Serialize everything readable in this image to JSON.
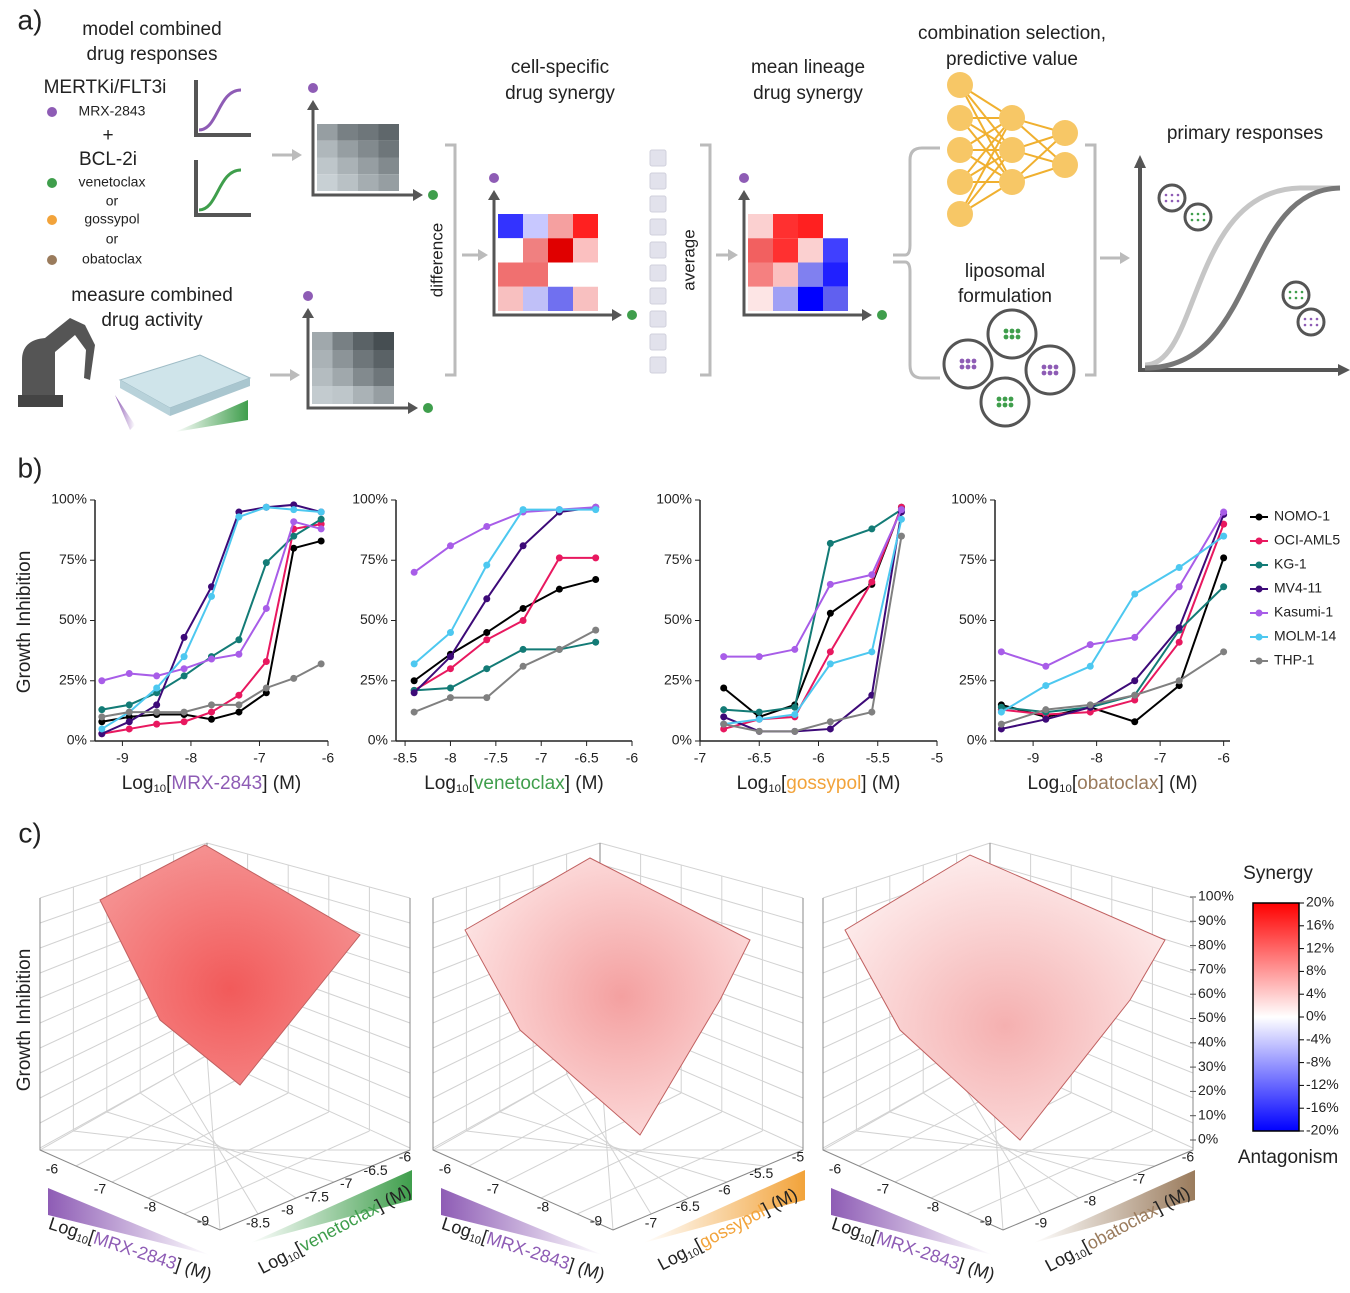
{
  "panel_a": {
    "label": "a)",
    "model": [
      "model combined",
      "drug responses"
    ],
    "mertk": "MERTKi/FLT3i",
    "mrx": "MRX-2843",
    "plus": "+",
    "bcl": "BCL-2i",
    "ven": "venetoclax",
    "or1": "or",
    "gos": "gossypol",
    "or2": "or",
    "oba": "obatoclax",
    "measure": [
      "measure combined",
      "drug activity"
    ],
    "difference": "difference",
    "cell": [
      "cell-specific",
      "drug synergy"
    ],
    "average": "average",
    "mean": [
      "mean lineage",
      "drug synergy"
    ],
    "combo": [
      "combination selection,",
      "predictive value"
    ],
    "lipo": [
      "liposomal",
      "formulation"
    ],
    "primary": "primary responses"
  },
  "panel_b": {
    "label": "b)",
    "ylabel": "Growth Inhibition",
    "log": "Log",
    "sub": "10",
    "open": "[",
    "close": "] (M)",
    "legend": [
      {
        "name": "NOMO-1",
        "color": "#000000"
      },
      {
        "name": "OCI-AML5",
        "color": "#e8185f"
      },
      {
        "name": "KG-1",
        "color": "#137b76"
      },
      {
        "name": "MV4-11",
        "color": "#3d0a78"
      },
      {
        "name": "Kasumi-1",
        "color": "#a85de8"
      },
      {
        "name": "MOLM-14",
        "color": "#4dc8f0"
      },
      {
        "name": "THP-1",
        "color": "#808080"
      }
    ]
  },
  "chart_data": [
    {
      "type": "line",
      "xlabel_drug": "MRX-2843",
      "xlabel_color": "#8e5cb5",
      "x": [
        -9.3,
        -8.9,
        -8.5,
        -8.1,
        -7.7,
        -7.3,
        -6.9,
        -6.5,
        -6.1
      ],
      "xlim": [
        -9.4,
        -6
      ],
      "xticks": [
        -9,
        -8,
        -7,
        -6
      ],
      "ylim": [
        0,
        100
      ],
      "yticks": [
        {
          "value": 0,
          "label": "0%"
        },
        {
          "value": 25,
          "label": "25%"
        },
        {
          "value": 50,
          "label": "50%"
        },
        {
          "value": 75,
          "label": "75%"
        },
        {
          "value": 100,
          "label": "100%"
        }
      ],
      "series": [
        {
          "values": [
            8,
            10,
            11,
            11,
            9,
            12,
            20,
            80,
            83
          ]
        },
        {
          "values": [
            3,
            5,
            7,
            8,
            12,
            19,
            33,
            88,
            90
          ]
        },
        {
          "values": [
            13,
            15,
            20,
            27,
            35,
            42,
            74,
            85,
            92
          ]
        },
        {
          "values": [
            3,
            8,
            15,
            43,
            64,
            95,
            97,
            98,
            95
          ]
        },
        {
          "values": [
            25,
            28,
            27,
            30,
            34,
            36,
            55,
            91,
            88
          ]
        },
        {
          "values": [
            5,
            12,
            22,
            35,
            60,
            93,
            97,
            96,
            95
          ]
        },
        {
          "values": [
            10,
            12,
            12,
            12,
            15,
            15,
            22,
            26,
            32
          ]
        }
      ]
    },
    {
      "type": "line",
      "xlabel_drug": "venetoclax",
      "xlabel_color": "#3f9e4c",
      "x": [
        -8.4,
        -8,
        -7.6,
        -7.2,
        -6.8,
        -6.4
      ],
      "xlim": [
        -8.6,
        -6
      ],
      "xticks": [
        -8.5,
        -8,
        -7.5,
        -7,
        -6.5,
        -6
      ],
      "ylim": [
        0,
        100
      ],
      "yticks": [
        {
          "value": 0,
          "label": "0%"
        },
        {
          "value": 25,
          "label": "25%"
        },
        {
          "value": 50,
          "label": "50%"
        },
        {
          "value": 75,
          "label": "75%"
        },
        {
          "value": 100,
          "label": "100%"
        }
      ],
      "series": [
        {
          "values": [
            25,
            36,
            45,
            55,
            63,
            67
          ]
        },
        {
          "values": [
            21,
            30,
            42,
            50,
            76,
            76
          ]
        },
        {
          "values": [
            21,
            22,
            30,
            38,
            38,
            41
          ]
        },
        {
          "values": [
            20,
            35,
            59,
            81,
            95,
            97
          ]
        },
        {
          "values": [
            70,
            81,
            89,
            95,
            96,
            97
          ]
        },
        {
          "values": [
            32,
            45,
            73,
            96,
            96,
            96
          ]
        },
        {
          "values": [
            12,
            18,
            18,
            31,
            38,
            46
          ]
        }
      ]
    },
    {
      "type": "line",
      "xlabel_drug": "gossypol",
      "xlabel_color": "#f2a33a",
      "x": [
        -6.8,
        -6.5,
        -6.2,
        -5.9,
        -5.55,
        -5.3
      ],
      "xlim": [
        -7,
        -5
      ],
      "xticks": [
        -7,
        -6.5,
        -6,
        -5.5,
        -5
      ],
      "ylim": [
        0,
        100
      ],
      "yticks": [
        {
          "value": 0,
          "label": "0%"
        },
        {
          "value": 25,
          "label": "25%"
        },
        {
          "value": 50,
          "label": "50%"
        },
        {
          "value": 75,
          "label": "75%"
        },
        {
          "value": 100,
          "label": "100%"
        }
      ],
      "series": [
        {
          "values": [
            22,
            10,
            15,
            53,
            65,
            97
          ]
        },
        {
          "values": [
            5,
            9,
            10,
            37,
            66,
            97
          ]
        },
        {
          "values": [
            13,
            12,
            14,
            82,
            88,
            96
          ]
        },
        {
          "values": [
            10,
            4,
            4,
            5,
            19,
            95
          ]
        },
        {
          "values": [
            35,
            35,
            38,
            65,
            69,
            96
          ]
        },
        {
          "values": [
            7,
            9,
            11,
            32,
            37,
            92
          ]
        },
        {
          "values": [
            7,
            4,
            4,
            8,
            12,
            85
          ]
        }
      ]
    },
    {
      "type": "line",
      "xlabel_drug": "obatoclax",
      "xlabel_color": "#9a7b5c",
      "x": [
        -9.5,
        -8.8,
        -8.1,
        -7.4,
        -6.7,
        -6
      ],
      "xlim": [
        -9.6,
        -5.9
      ],
      "xticks": [
        -9,
        -8,
        -7,
        -6
      ],
      "ylim": [
        0,
        100
      ],
      "yticks": [
        {
          "value": 0,
          "label": "0%"
        },
        {
          "value": 25,
          "label": "25%"
        },
        {
          "value": 50,
          "label": "50%"
        },
        {
          "value": 75,
          "label": "75%"
        },
        {
          "value": 100,
          "label": "100%"
        }
      ],
      "series": [
        {
          "values": [
            15,
            10,
            14,
            8,
            23,
            76
          ]
        },
        {
          "values": [
            13,
            11,
            12,
            17,
            41,
            90
          ]
        },
        {
          "values": [
            14,
            12,
            14,
            19,
            46,
            64
          ]
        },
        {
          "values": [
            5,
            9,
            14,
            25,
            47,
            94
          ]
        },
        {
          "values": [
            37,
            31,
            40,
            43,
            64,
            95
          ]
        },
        {
          "values": [
            12,
            23,
            31,
            61,
            72,
            85
          ]
        },
        {
          "values": [
            7,
            13,
            15,
            19,
            25,
            37
          ]
        }
      ]
    }
  ],
  "panel_c": {
    "label": "c)",
    "ylabel": "Growth Inhibition",
    "zlim": [
      0,
      100
    ],
    "zticks": [
      {
        "value": 0,
        "label": "0%"
      },
      {
        "value": 10,
        "label": "10%"
      },
      {
        "value": 20,
        "label": "20%"
      },
      {
        "value": 30,
        "label": "30%"
      },
      {
        "value": 40,
        "label": "40%"
      },
      {
        "value": 50,
        "label": "50%"
      },
      {
        "value": 60,
        "label": "60%"
      },
      {
        "value": 70,
        "label": "70%"
      },
      {
        "value": 80,
        "label": "80%"
      },
      {
        "value": 90,
        "label": "90%"
      },
      {
        "value": 100,
        "label": "100%"
      }
    ],
    "colorbar": {
      "lim": [
        -20,
        20
      ],
      "ticks": [
        {
          "value": 20,
          "label": "20%"
        },
        {
          "value": 16,
          "label": "16%"
        },
        {
          "value": 12,
          "label": "12%"
        },
        {
          "value": 8,
          "label": "8%"
        },
        {
          "value": 4,
          "label": "4%"
        },
        {
          "value": 0,
          "label": "0%"
        },
        {
          "value": -4,
          "label": "-4%"
        },
        {
          "value": -8,
          "label": "-8%"
        },
        {
          "value": -12,
          "label": "-12%"
        },
        {
          "value": -16,
          "label": "-16%"
        },
        {
          "value": -20,
          "label": "-20%"
        }
      ]
    },
    "synergy": "Synergy",
    "antagonism": "Antagonism",
    "plots": [
      {
        "drug_a": "MRX-2843",
        "a_ticks": [
          -6,
          -7,
          -8,
          -9
        ],
        "drug_b": "venetoclax",
        "b_ticks": [
          -8.5,
          -8,
          -7.5,
          -7,
          -6.5,
          -6
        ]
      },
      {
        "drug_a": "MRX-2843",
        "a_ticks": [
          -6,
          -7,
          -8,
          -9
        ],
        "drug_b": "gossypol",
        "b_ticks": [
          -7,
          -6.5,
          -6,
          -5.5,
          -5
        ]
      },
      {
        "drug_a": "MRX-2843",
        "a_ticks": [
          -6,
          -7,
          -8,
          -9
        ],
        "drug_b": "obatoclax",
        "b_ticks": [
          -9,
          -8,
          -7,
          -6
        ]
      }
    ]
  }
}
